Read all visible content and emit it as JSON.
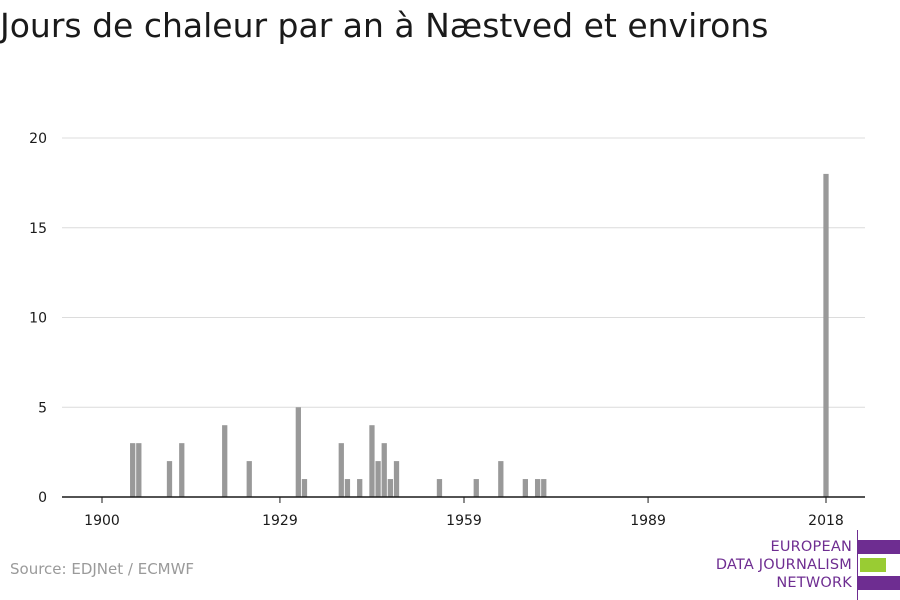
{
  "source": "Source: EDJNet / ECMWF",
  "logo": {
    "lines": [
      "EUROPEAN",
      "DATA JOURNALISM",
      "NETWORK"
    ],
    "colors": {
      "primary": "#6e2d91",
      "accent": "#99cc33"
    }
  },
  "chart_data": {
    "type": "bar",
    "title": "Jours de chaleur par an à Næstved et environs",
    "xlabel": "",
    "ylabel": "",
    "xlim": [
      1900,
      2018
    ],
    "ylim": [
      0,
      20
    ],
    "x_ticks": [
      1900,
      1929,
      1959,
      1989,
      2018
    ],
    "y_ticks": [
      0,
      5,
      10,
      15,
      20
    ],
    "grid": true,
    "bar_color": "#999999",
    "categories": [
      1900,
      1901,
      1902,
      1903,
      1904,
      1905,
      1906,
      1907,
      1908,
      1909,
      1910,
      1911,
      1912,
      1913,
      1914,
      1915,
      1916,
      1917,
      1918,
      1919,
      1920,
      1921,
      1922,
      1923,
      1924,
      1925,
      1926,
      1927,
      1928,
      1929,
      1930,
      1931,
      1932,
      1933,
      1934,
      1935,
      1936,
      1937,
      1938,
      1939,
      1940,
      1941,
      1942,
      1943,
      1944,
      1945,
      1946,
      1947,
      1948,
      1949,
      1950,
      1951,
      1952,
      1953,
      1954,
      1955,
      1956,
      1957,
      1958,
      1959,
      1960,
      1961,
      1962,
      1963,
      1964,
      1965,
      1966,
      1967,
      1968,
      1969,
      1970,
      1971,
      1972,
      1973,
      1974,
      1975,
      1976,
      1977,
      1978,
      1979,
      1980,
      1981,
      1982,
      1983,
      1984,
      1985,
      1986,
      1987,
      1988,
      1989,
      1990,
      1991,
      1992,
      1993,
      1994,
      1995,
      1996,
      1997,
      1998,
      1999,
      2000,
      2001,
      2002,
      2003,
      2004,
      2005,
      2006,
      2007,
      2008,
      2009,
      2010,
      2011,
      2012,
      2013,
      2014,
      2015,
      2016,
      2017,
      2018
    ],
    "values": [
      0,
      0,
      0,
      0,
      0,
      3,
      3,
      0,
      0,
      0,
      0,
      2,
      0,
      3,
      0,
      0,
      0,
      0,
      0,
      0,
      4,
      0,
      0,
      0,
      2,
      0,
      0,
      0,
      0,
      0,
      0,
      0,
      5,
      1,
      0,
      0,
      0,
      0,
      0,
      3,
      1,
      0,
      1,
      0,
      4,
      2,
      3,
      1,
      2,
      0,
      0,
      0,
      0,
      0,
      0,
      1,
      0,
      0,
      0,
      0,
      0,
      1,
      0,
      0,
      0,
      2,
      0,
      0,
      0,
      1,
      0,
      1,
      1,
      0,
      0,
      0,
      0,
      0,
      0,
      0,
      0,
      0,
      0,
      0,
      0,
      0,
      0,
      0,
      0,
      0,
      0,
      0,
      0,
      0,
      0,
      0,
      0,
      0,
      0,
      0,
      0,
      0,
      0,
      0,
      0,
      0,
      0,
      0,
      0,
      0,
      0,
      0,
      0,
      0,
      0,
      0,
      0,
      0,
      18
    ]
  }
}
